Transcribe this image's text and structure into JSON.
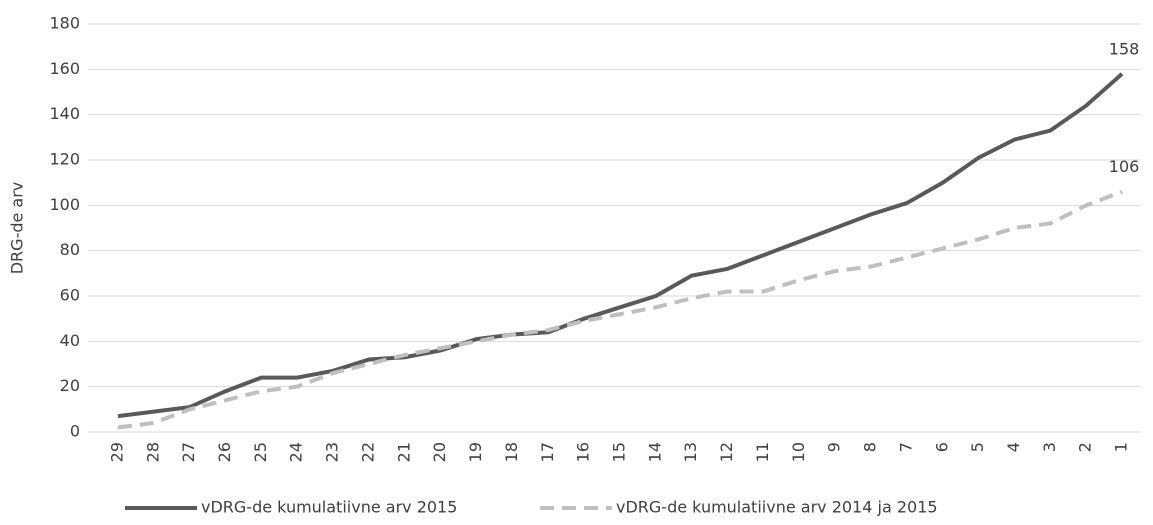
{
  "chart_data": {
    "type": "line",
    "ylabel": "DRG-de arv",
    "categories": [
      "29",
      "28",
      "27",
      "26",
      "25",
      "24",
      "23",
      "22",
      "21",
      "20",
      "19",
      "18",
      "17",
      "16",
      "15",
      "14",
      "13",
      "12",
      "11",
      "10",
      "9",
      "8",
      "7",
      "6",
      "5",
      "4",
      "3",
      "2",
      "1"
    ],
    "series": [
      {
        "name": "vDRG-de kumulatiivne arv 2015",
        "color": "#595959",
        "dashed": false,
        "values": [
          7,
          9,
          11,
          18,
          24,
          24,
          27,
          32,
          33,
          36,
          41,
          43,
          44,
          50,
          55,
          60,
          69,
          72,
          78,
          84,
          90,
          96,
          101,
          110,
          121,
          129,
          133,
          144,
          158
        ]
      },
      {
        "name": "vDRG-de kumulatiivne arv 2014 ja 2015",
        "color": "#bfbfbf",
        "dashed": true,
        "values": [
          2,
          4,
          10,
          14,
          18,
          20,
          26,
          30,
          34,
          37,
          40,
          43,
          45,
          49,
          52,
          55,
          59,
          62,
          62,
          67,
          71,
          73,
          77,
          81,
          85,
          90,
          92,
          100,
          106
        ]
      }
    ],
    "ylim": [
      0,
      180
    ],
    "yticks": [
      0,
      20,
      40,
      60,
      80,
      100,
      120,
      140,
      160,
      180
    ],
    "grid": true,
    "legend": "bottom"
  }
}
